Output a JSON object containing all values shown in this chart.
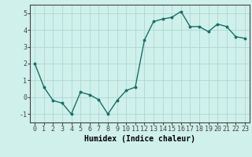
{
  "x": [
    0,
    1,
    2,
    3,
    4,
    5,
    6,
    7,
    8,
    9,
    10,
    11,
    12,
    13,
    14,
    15,
    16,
    17,
    18,
    19,
    20,
    21,
    22,
    23
  ],
  "y": [
    2.0,
    0.6,
    -0.2,
    -0.35,
    -1.0,
    0.3,
    0.15,
    -0.15,
    -1.0,
    -0.2,
    0.4,
    0.6,
    3.4,
    4.5,
    4.65,
    4.75,
    5.1,
    4.2,
    4.2,
    3.9,
    4.35,
    4.2,
    3.6,
    3.5
  ],
  "line_color": "#1a7068",
  "marker": "o",
  "marker_size": 1.8,
  "linewidth": 1.0,
  "background_color": "#cff0eb",
  "grid_color": "#b0d8d2",
  "axis_color": "#444444",
  "xlabel": "Humidex (Indice chaleur)",
  "xlabel_fontsize": 7,
  "ylim": [
    -1.5,
    5.5
  ],
  "xlim": [
    -0.5,
    23.5
  ],
  "yticks": [
    -1,
    0,
    1,
    2,
    3,
    4,
    5
  ],
  "xticks": [
    0,
    1,
    2,
    3,
    4,
    5,
    6,
    7,
    8,
    9,
    10,
    11,
    12,
    13,
    14,
    15,
    16,
    17,
    18,
    19,
    20,
    21,
    22,
    23
  ],
  "tick_fontsize": 6
}
